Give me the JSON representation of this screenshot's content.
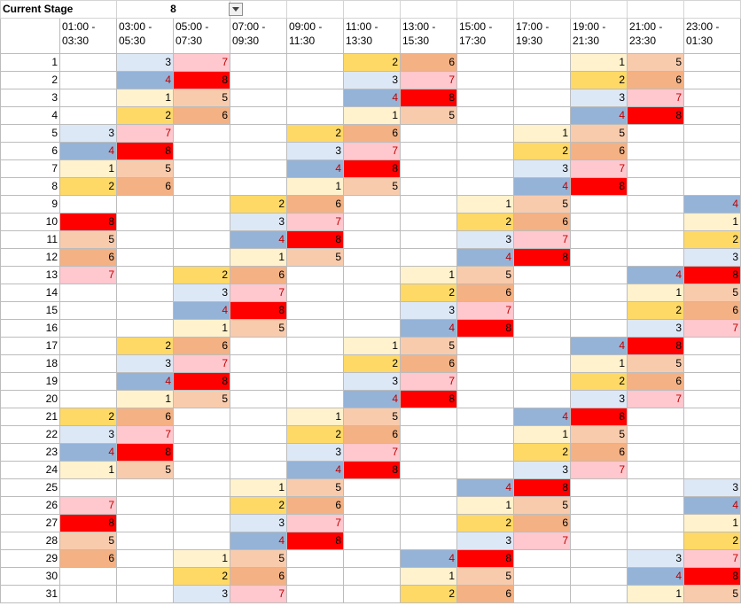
{
  "stage": {
    "label": "Current Stage",
    "value": "8"
  },
  "columns": [
    "01:00 - 03:30",
    "03:00 - 05:30",
    "05:00 - 07:30",
    "07:00 - 09:30",
    "09:00 - 11:30",
    "11:00 - 13:30",
    "13:00 - 15:30",
    "15:00 - 17:30",
    "17:00 - 19:30",
    "19:00 - 21:30",
    "21:00 - 23:30",
    "23:00 - 01:30"
  ],
  "row_labels": [
    "1",
    "2",
    "3",
    "4",
    "5",
    "6",
    "7",
    "8",
    "9",
    "10",
    "11",
    "12",
    "13",
    "14",
    "15",
    "16",
    "17",
    "18",
    "19",
    "20",
    "21",
    "22",
    "23",
    "24",
    "25",
    "26",
    "27",
    "28",
    "29",
    "30",
    "31"
  ],
  "grid": [
    [
      "",
      "3",
      "7",
      "",
      "",
      "2",
      "6",
      "",
      "",
      "1",
      "5",
      ""
    ],
    [
      "",
      "4",
      "8",
      "",
      "",
      "3",
      "7",
      "",
      "",
      "2",
      "6",
      ""
    ],
    [
      "",
      "1",
      "5",
      "",
      "",
      "4",
      "8",
      "",
      "",
      "3",
      "7",
      ""
    ],
    [
      "",
      "2",
      "6",
      "",
      "",
      "1",
      "5",
      "",
      "",
      "4",
      "8",
      ""
    ],
    [
      "3",
      "7",
      "",
      "",
      "2",
      "6",
      "",
      "",
      "1",
      "5",
      "",
      ""
    ],
    [
      "4",
      "8",
      "",
      "",
      "3",
      "7",
      "",
      "",
      "2",
      "6",
      "",
      ""
    ],
    [
      "1",
      "5",
      "",
      "",
      "4",
      "8",
      "",
      "",
      "3",
      "7",
      "",
      ""
    ],
    [
      "2",
      "6",
      "",
      "",
      "1",
      "5",
      "",
      "",
      "4",
      "8",
      "",
      ""
    ],
    [
      "",
      "",
      "",
      "2",
      "6",
      "",
      "",
      "1",
      "5",
      "",
      "",
      "4"
    ],
    [
      "8",
      "",
      "",
      "3",
      "7",
      "",
      "",
      "2",
      "6",
      "",
      "",
      "1"
    ],
    [
      "5",
      "",
      "",
      "4",
      "8",
      "",
      "",
      "3",
      "7",
      "",
      "",
      "2"
    ],
    [
      "6",
      "",
      "",
      "1",
      "5",
      "",
      "",
      "4",
      "8",
      "",
      "",
      "3"
    ],
    [
      "7",
      "",
      "2",
      "6",
      "",
      "",
      "1",
      "5",
      "",
      "",
      "4",
      "8"
    ],
    [
      "",
      "",
      "3",
      "7",
      "",
      "",
      "2",
      "6",
      "",
      "",
      "1",
      "5"
    ],
    [
      "",
      "",
      "4",
      "8",
      "",
      "",
      "3",
      "7",
      "",
      "",
      "2",
      "6"
    ],
    [
      "",
      "",
      "1",
      "5",
      "",
      "",
      "4",
      "8",
      "",
      "",
      "3",
      "7"
    ],
    [
      "",
      "2",
      "6",
      "",
      "",
      "1",
      "5",
      "",
      "",
      "4",
      "8",
      ""
    ],
    [
      "",
      "3",
      "7",
      "",
      "",
      "2",
      "6",
      "",
      "",
      "1",
      "5",
      ""
    ],
    [
      "",
      "4",
      "8",
      "",
      "",
      "3",
      "7",
      "",
      "",
      "2",
      "6",
      ""
    ],
    [
      "",
      "1",
      "5",
      "",
      "",
      "4",
      "8",
      "",
      "",
      "3",
      "7",
      ""
    ],
    [
      "2",
      "6",
      "",
      "",
      "1",
      "5",
      "",
      "",
      "4",
      "8",
      "",
      ""
    ],
    [
      "3",
      "7",
      "",
      "",
      "2",
      "6",
      "",
      "",
      "1",
      "5",
      "",
      ""
    ],
    [
      "4",
      "8",
      "",
      "",
      "3",
      "7",
      "",
      "",
      "2",
      "6",
      "",
      ""
    ],
    [
      "1",
      "5",
      "",
      "",
      "4",
      "8",
      "",
      "",
      "3",
      "7",
      "",
      ""
    ],
    [
      "",
      "",
      "",
      "1",
      "5",
      "",
      "",
      "4",
      "8",
      "",
      "",
      "3"
    ],
    [
      "7",
      "",
      "",
      "2",
      "6",
      "",
      "",
      "1",
      "5",
      "",
      "",
      "4"
    ],
    [
      "8",
      "",
      "",
      "3",
      "7",
      "",
      "",
      "2",
      "6",
      "",
      "",
      "1"
    ],
    [
      "5",
      "",
      "",
      "4",
      "8",
      "",
      "",
      "3",
      "7",
      "",
      "",
      "2"
    ],
    [
      "6",
      "",
      "1",
      "5",
      "",
      "",
      "4",
      "8",
      "",
      "",
      "3",
      "7"
    ],
    [
      "",
      "",
      "2",
      "6",
      "",
      "",
      "1",
      "5",
      "",
      "",
      "4",
      "8"
    ],
    [
      "",
      "",
      "3",
      "7",
      "",
      "",
      "2",
      "6",
      "",
      "",
      "1",
      "5"
    ]
  ],
  "value_colors": {
    "1": "#fff2cc",
    "2": "#ffd966",
    "3": "#dde8f6",
    "4": "#95b3d7",
    "5": "#f8cbad",
    "6": "#f4b183",
    "7": "#ffc7ce",
    "8": "#ff0000"
  },
  "dropdown_icon": "chevron-down-icon"
}
